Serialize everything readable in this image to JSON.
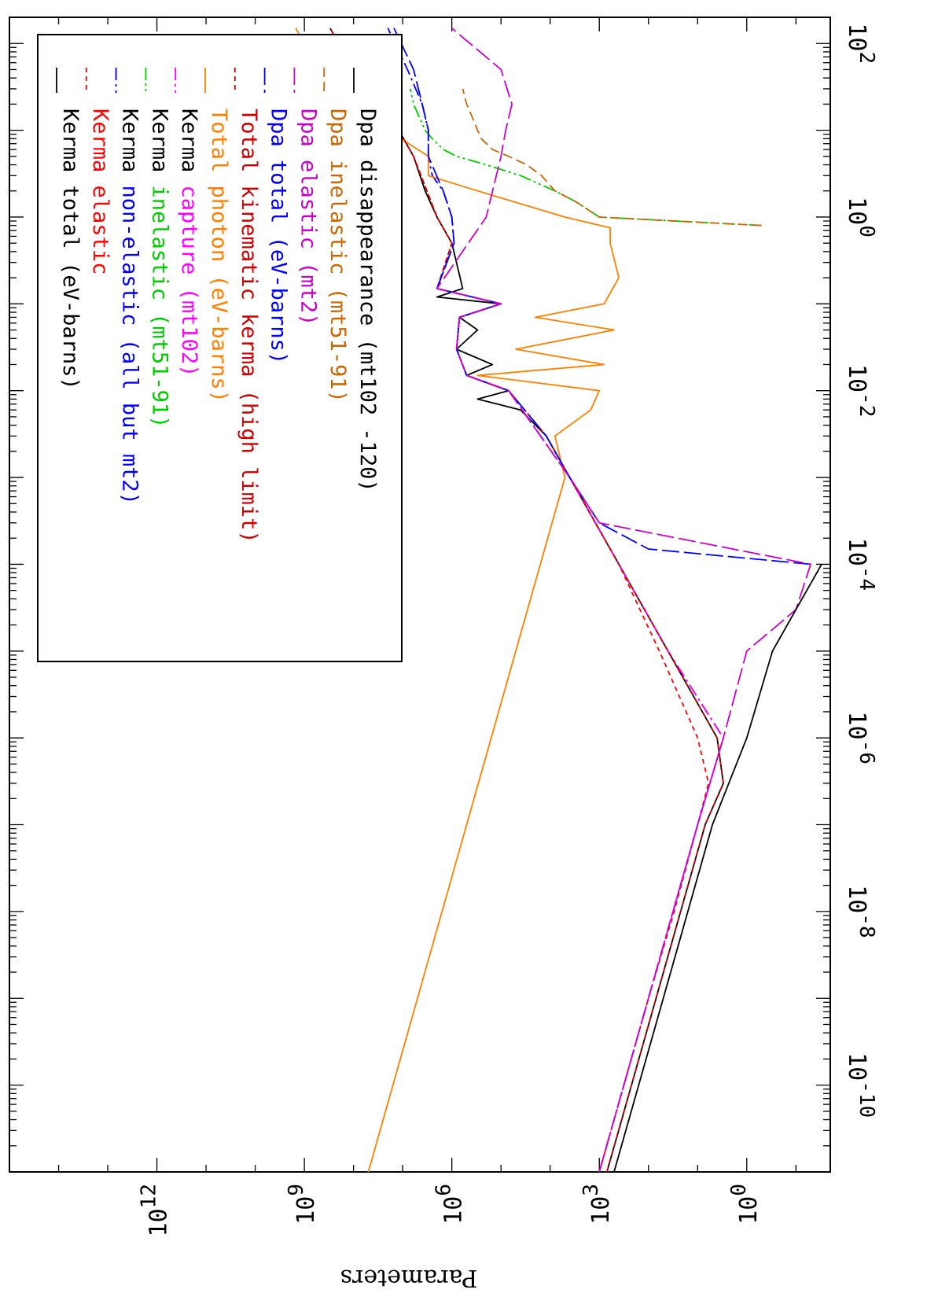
{
  "chart_data": {
    "type": "line",
    "orientation": "rotated-90-clockwise",
    "ylabel": "Parameters",
    "xlabel": "",
    "x_scale": "log",
    "y_scale": "log",
    "xlim": [
      1e-11,
      200
    ],
    "ylim": [
      0.02,
      1000000000000000.0
    ],
    "grid": false,
    "legend_position": "top-left",
    "x_ticks": [
      {
        "base": "10",
        "exp": "-10",
        "value": 1e-10
      },
      {
        "base": "10",
        "exp": "-8",
        "value": 1e-08
      },
      {
        "base": "10",
        "exp": "-6",
        "value": 1e-06
      },
      {
        "base": "10",
        "exp": "-4",
        "value": 0.0001
      },
      {
        "base": "10",
        "exp": "-2",
        "value": 0.01
      },
      {
        "base": "10",
        "exp": "0",
        "value": 1
      },
      {
        "base": "10",
        "exp": "2",
        "value": 100
      }
    ],
    "y_ticks": [
      {
        "base": "10",
        "exp": "0",
        "value": 1
      },
      {
        "base": "10",
        "exp": "3",
        "value": 1000
      },
      {
        "base": "10",
        "exp": "6",
        "value": 1000000
      },
      {
        "base": "10",
        "exp": "9",
        "value": 1000000000
      },
      {
        "base": "10",
        "exp": "12",
        "value": 1000000000000
      }
    ],
    "legend": [
      {
        "prefix": "Kerma",
        "text": " total  (eV-barns)",
        "prefix_color": "#000000",
        "color": "#000000",
        "dash": "solid"
      },
      {
        "prefix": "Kerma",
        "text": " elastic",
        "prefix_color": "#ff0000",
        "color": "#ff0000",
        "dash": "short"
      },
      {
        "prefix": "Kerma",
        "text": " non-elastic (all but mt2)",
        "prefix_color": "#000000",
        "color": "#0000ff",
        "dash": "dashdot"
      },
      {
        "prefix": "Kerma",
        "text": " inelastic (mt51-91)",
        "prefix_color": "#000000",
        "color": "#00cc00",
        "dash": "dashdotdot"
      },
      {
        "prefix": "Kerma",
        "text": " capture (mt102)",
        "prefix_color": "#000000",
        "color": "#ff00ff",
        "dash": "dashdot"
      },
      {
        "prefix": "Total",
        "text": " photon (eV-barns)",
        "prefix_color": "#ff8000",
        "color": "#ff8000",
        "dash": "solid"
      },
      {
        "prefix": "Total",
        "text": " kinematic kerma (high limit)",
        "prefix_color": "#cc0000",
        "color": "#cc0000",
        "dash": "short"
      },
      {
        "prefix": "Dpa",
        "text": " total (eV-barns)",
        "prefix_color": "#0000ff",
        "color": "#0000ff",
        "dash": "longdash"
      },
      {
        "prefix": "Dpa",
        "text": " elastic (mt2)",
        "prefix_color": "#cc00cc",
        "color": "#cc00cc",
        "dash": "longdash"
      },
      {
        "prefix": "Dpa",
        "text": " inelastic (mt51-91)",
        "prefix_color": "#cc6600",
        "color": "#cc6600",
        "dash": "long"
      },
      {
        "prefix": "Dpa",
        "text": " disappearance (mt102 -120)",
        "prefix_color": "#000000",
        "color": "#000000",
        "dash": "solid"
      }
    ],
    "series": [
      {
        "name": "Kerma total (eV-barns)",
        "color": "#000000",
        "dash": "solid",
        "x": [
          1e-11,
          1e-09,
          1e-07,
          3e-07,
          1e-06,
          1e-05,
          0.0001,
          0.001,
          0.003,
          0.006,
          0.008,
          0.01,
          0.015,
          0.02,
          0.03,
          0.05,
          0.07,
          0.1,
          0.12,
          0.15,
          0.5,
          1,
          2,
          5,
          10,
          20,
          50,
          100,
          150
        ],
        "y": [
          700,
          70,
          7,
          3,
          4,
          40,
          400,
          4000,
          12000,
          40000,
          300000,
          70000,
          500000,
          150000,
          800000,
          300000,
          700000,
          100000,
          2000000,
          600000,
          1000000,
          2000000,
          3500000,
          6000000,
          12000000,
          30000000,
          80000000,
          200000000,
          300000000
        ]
      },
      {
        "name": "Kerma elastic",
        "color": "#ff0000",
        "dash": "short",
        "x": [
          1e-11,
          1e-09,
          1e-08,
          1e-07,
          3e-07,
          1e-06,
          1e-05,
          0.0001,
          0.001,
          0.003,
          0.01,
          0.015,
          0.03,
          0.07,
          0.1,
          0.15,
          0.5,
          1,
          5,
          10,
          20,
          30,
          50,
          100,
          150
        ],
        "y": [
          1000,
          100,
          30,
          10,
          6,
          10,
          60,
          400,
          4000,
          12000,
          70000,
          500000,
          800000,
          700000,
          100000,
          2000000,
          1000000,
          2000000,
          6000000,
          12000000,
          30000000,
          50000000,
          100000000,
          200000000,
          300000000
        ]
      },
      {
        "name": "Kerma non-elastic (all but mt2)",
        "color": "#0000ff",
        "dash": "dashdot",
        "x": [
          1e-11,
          1e-09,
          1e-07,
          1e-06,
          1e-05,
          0.0001,
          0.001,
          0.01,
          0.015,
          0.03,
          0.07,
          0.1,
          0.15,
          0.5,
          1,
          2,
          3,
          5,
          10,
          20,
          50,
          150
        ],
        "y": [
          1000,
          100,
          10,
          3,
          40,
          400,
          4000,
          70000,
          500000,
          800000,
          700000,
          100000,
          2000000,
          900000,
          1000000,
          1500000,
          2500000,
          3000000,
          3000000,
          4000000,
          8000000,
          20000000
        ]
      },
      {
        "name": "Kerma inelastic (mt51-91)",
        "color": "#00cc00",
        "dash": "dashdotdot",
        "x": [
          0.8,
          1,
          1.5,
          2,
          3,
          4,
          5,
          6,
          8,
          10,
          20,
          30
        ],
        "y": [
          0.5,
          1000,
          3000,
          8000,
          40000,
          200000,
          800000,
          1500000,
          2500000,
          3500000,
          6000000,
          7000000
        ]
      },
      {
        "name": "Kerma capture (mt102)",
        "color": "#ff00ff",
        "dash": "dashdot",
        "x": [
          1e-11,
          1e-09,
          1e-07,
          1e-06,
          1e-05,
          0.0001,
          0.001,
          0.01,
          0.015,
          0.03,
          0.07,
          0.1,
          0.15
        ],
        "y": [
          1000,
          100,
          10,
          3,
          40,
          400,
          4000,
          70000,
          500000,
          800000,
          700000,
          100000,
          2000000
        ]
      },
      {
        "name": "Total photon (eV-barns)",
        "color": "#ff8000",
        "dash": "solid",
        "x": [
          1e-11,
          1e-09,
          1e-07,
          1e-05,
          0.001,
          0.003,
          0.006,
          0.01,
          0.015,
          0.02,
          0.03,
          0.05,
          0.07,
          0.1,
          0.2,
          0.5,
          0.75,
          1,
          2,
          3,
          5,
          10,
          20,
          30,
          50,
          100,
          150
        ],
        "y": [
          50000000,
          5000000,
          500000,
          50000,
          5000,
          8000,
          1500,
          1000,
          300000,
          800,
          50000,
          500,
          20000,
          800,
          400,
          600,
          600,
          5000,
          300000,
          3000000,
          3000000,
          20000000,
          15000000,
          300000000,
          600000000,
          1000000000,
          1500000000
        ]
      },
      {
        "name": "Total kinematic kerma (high limit)",
        "color": "#cc0000",
        "dash": "short",
        "x": [
          1e-11,
          1e-09,
          1e-07,
          3e-07,
          1e-06,
          1e-05,
          0.0001,
          0.001,
          0.003,
          0.01,
          0.015,
          0.03,
          0.07,
          0.1,
          0.15,
          0.5,
          1,
          5,
          10,
          20,
          50,
          100,
          150
        ],
        "y": [
          700,
          70,
          7,
          3,
          4,
          40,
          400,
          4000,
          12000,
          70000,
          500000,
          800000,
          700000,
          100000,
          2000000,
          1000000,
          2000000,
          6000000,
          12000000,
          30000000,
          80000000,
          200000000,
          300000000
        ]
      },
      {
        "name": "Dpa total (eV-barns)",
        "color": "#0000ff",
        "dash": "longdash",
        "x": [
          0.0001,
          0.00015,
          0.0003,
          0.001,
          0.003,
          0.01,
          0.015,
          0.03,
          0.07,
          0.1,
          0.15,
          0.5,
          1,
          2,
          5,
          10,
          20,
          50,
          150
        ],
        "y": [
          0.05,
          100,
          1000,
          4000,
          12000,
          70000,
          500000,
          800000,
          700000,
          100000,
          2000000,
          900000,
          1000000,
          1500000,
          3000000,
          3000000,
          4000000,
          6000000,
          15000000
        ]
      },
      {
        "name": "Dpa elastic (mt2)",
        "color": "#cc00cc",
        "dash": "longdash",
        "x": [
          1e-11,
          1e-09,
          1e-07,
          1e-06,
          1e-05,
          3e-05,
          0.0001,
          0.0003,
          0.001,
          0.01,
          0.015,
          0.03,
          0.07,
          0.1,
          0.15,
          1,
          5,
          10,
          20,
          50,
          150
        ],
        "y": [
          1000,
          100,
          10,
          3,
          1,
          0.1,
          0.05,
          1000,
          4000,
          70000,
          500000,
          800000,
          700000,
          100000,
          2000000,
          200000,
          100000,
          80000,
          60000,
          100000,
          1000000
        ]
      },
      {
        "name": "Dpa inelastic (mt51-91)",
        "color": "#cc6600",
        "dash": "long",
        "x": [
          0.8,
          1,
          1.5,
          2,
          3,
          4,
          5,
          6,
          8,
          10,
          15,
          20,
          30
        ],
        "y": [
          0.5,
          1000,
          3000,
          8000,
          15000,
          30000,
          70000,
          150000,
          250000,
          300000,
          400000,
          500000,
          600000
        ]
      },
      {
        "name": "Dpa disappearance (mt102 -120)",
        "color": "#000000",
        "dash": "solid",
        "x": [
          1e-11,
          1e-09,
          1e-07,
          1e-06,
          1e-05,
          3e-05,
          0.0001
        ],
        "y": [
          500,
          50,
          5,
          1,
          0.3,
          0.1,
          0.03
        ]
      }
    ]
  }
}
